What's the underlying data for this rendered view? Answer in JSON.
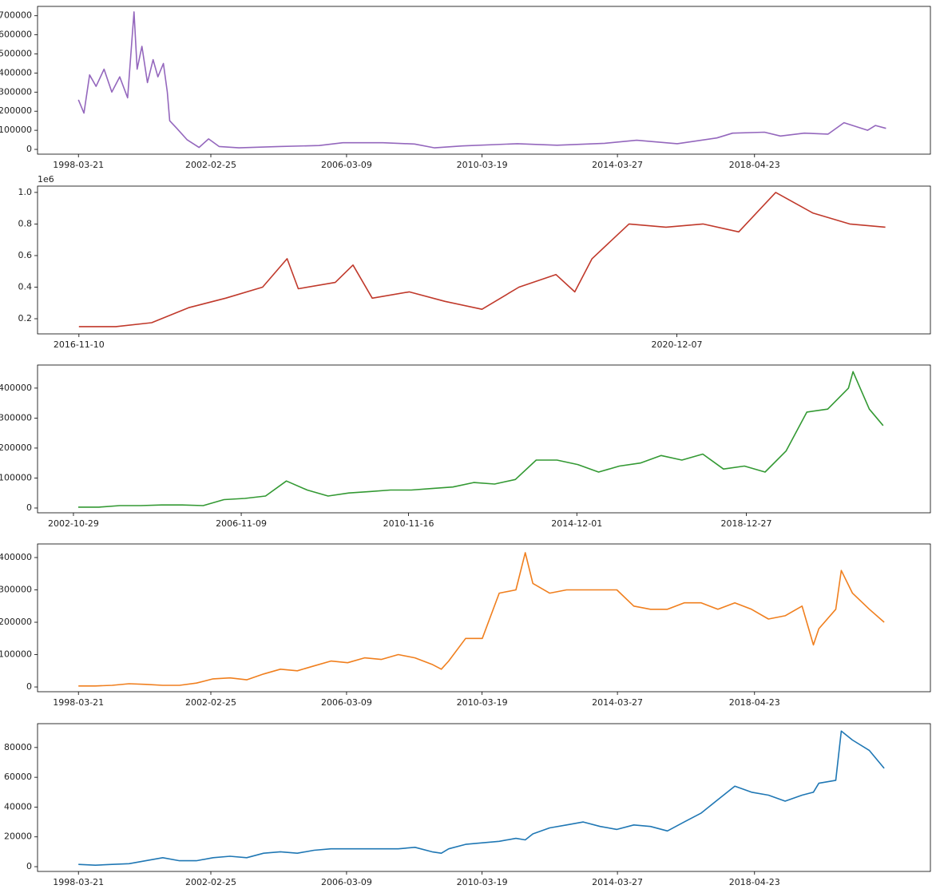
{
  "chart_data": [
    {
      "type": "line",
      "color": "#9467bd",
      "x": [
        "1998-03-21",
        "1998-05-20",
        "1998-07-20",
        "1998-09-28",
        "1998-12-24",
        "1999-03-18",
        "1999-06-12",
        "1999-09-06",
        "1999-11-14",
        "1999-12-18",
        "2000-02-08",
        "2000-04-08",
        "2000-06-08",
        "2000-07-30",
        "2000-09-28",
        "2000-11-10",
        "2000-12-06",
        "2001-02-21",
        "2001-06-13",
        "2001-10-20",
        "2002-02-01",
        "2002-05-25",
        "2002-12-28",
        "2004-03-10",
        "2005-05-15",
        "2006-01-28",
        "2007-04-08",
        "2008-03-15",
        "2008-10-20",
        "2009-08-16",
        "2011-04-06",
        "2012-06-10",
        "2013-11-08",
        "2014-10-22",
        "2016-01-05",
        "2017-03-10",
        "2017-08-28",
        "2018-08-10",
        "2019-01-29",
        "2019-10-15",
        "2020-06-30",
        "2020-12-19",
        "2021-09-02",
        "2021-11-26",
        "2022-03-20"
      ],
      "values": [
        260000,
        190000,
        390000,
        330000,
        420000,
        300000,
        380000,
        270000,
        720000,
        420000,
        540000,
        350000,
        470000,
        380000,
        450000,
        300000,
        150000,
        110000,
        50000,
        10000,
        55000,
        15000,
        8000,
        15000,
        20000,
        35000,
        35000,
        28000,
        8000,
        18000,
        30000,
        22000,
        32000,
        48000,
        30000,
        60000,
        85000,
        90000,
        70000,
        85000,
        80000,
        140000,
        100000,
        125000,
        110000
      ],
      "xlim": [
        "1997-01-01",
        "2023-07-15"
      ],
      "xticks": [
        "1998-03-21",
        "2002-02-25",
        "2006-03-09",
        "2010-03-19",
        "2014-03-27",
        "2018-04-23"
      ],
      "ylim": [
        -25000,
        749000
      ],
      "yticks": [
        0,
        100000,
        200000,
        300000,
        400000,
        500000,
        600000,
        700000
      ]
    },
    {
      "type": "line",
      "color": "#c0392b",
      "x": [
        "2016-11-10",
        "2017-02-10",
        "2017-05-10",
        "2017-08-10",
        "2017-11-10",
        "2018-02-10",
        "2018-04-12",
        "2018-05-10",
        "2018-08-10",
        "2018-09-23",
        "2018-11-10",
        "2019-02-10",
        "2019-05-10",
        "2019-08-10",
        "2019-11-10",
        "2020-02-10",
        "2020-03-28",
        "2020-05-10",
        "2020-08-10",
        "2020-11-10",
        "2021-02-10",
        "2021-05-10",
        "2021-08-10",
        "2021-11-10",
        "2022-02-10",
        "2022-05-10"
      ],
      "values": [
        150000,
        150000,
        175000,
        270000,
        330000,
        400000,
        580000,
        390000,
        430000,
        540000,
        330000,
        370000,
        310000,
        260000,
        400000,
        480000,
        370000,
        580000,
        800000,
        780000,
        800000,
        750000,
        1000000,
        870000,
        800000,
        780000
      ],
      "xlim": [
        "2016-07-30",
        "2022-08-30"
      ],
      "xticks": [
        "2016-11-10",
        "2020-12-07"
      ],
      "ylim": [
        104000,
        1040000
      ],
      "yticks": [
        {
          "value": 200000,
          "label": "0.2"
        },
        {
          "value": 400000,
          "label": "0.4"
        },
        {
          "value": 600000,
          "label": "0.6"
        },
        {
          "value": 800000,
          "label": "0.8"
        },
        {
          "value": 1000000,
          "label": "1.0"
        }
      ],
      "offset_text": "1e6"
    },
    {
      "type": "line",
      "color": "#339933",
      "x": [
        "2002-12-10",
        "2003-06-10",
        "2003-12-10",
        "2004-06-10",
        "2004-12-10",
        "2005-06-10",
        "2005-12-10",
        "2006-06-10",
        "2006-12-10",
        "2007-06-10",
        "2007-12-10",
        "2008-06-10",
        "2008-12-10",
        "2009-06-10",
        "2009-12-10",
        "2010-06-10",
        "2010-12-10",
        "2011-06-10",
        "2011-12-10",
        "2012-06-10",
        "2012-12-10",
        "2013-06-10",
        "2013-12-10",
        "2014-06-10",
        "2014-12-10",
        "2015-06-10",
        "2015-12-10",
        "2016-06-10",
        "2016-12-10",
        "2017-06-10",
        "2017-12-10",
        "2018-06-10",
        "2018-12-10",
        "2019-06-10",
        "2019-12-10",
        "2020-06-10",
        "2020-12-10",
        "2021-06-10",
        "2021-07-20",
        "2021-12-10",
        "2022-04-10"
      ],
      "values": [
        3000,
        3000,
        8000,
        8000,
        10000,
        10000,
        8000,
        28000,
        32000,
        40000,
        90000,
        60000,
        40000,
        50000,
        55000,
        60000,
        60000,
        65000,
        70000,
        85000,
        80000,
        95000,
        160000,
        160000,
        145000,
        120000,
        140000,
        150000,
        175000,
        160000,
        180000,
        130000,
        140000,
        120000,
        190000,
        320000,
        330000,
        400000,
        455000,
        330000,
        275000
      ],
      "xlim": [
        "2001-12-18",
        "2023-05-30"
      ],
      "xticks": [
        "2002-10-29",
        "2006-11-09",
        "2010-11-16",
        "2014-12-01",
        "2018-12-27"
      ],
      "ylim": [
        -16000,
        477000
      ],
      "yticks": [
        0,
        100000,
        200000,
        300000,
        400000
      ]
    },
    {
      "type": "line",
      "color": "#f07f1e",
      "x": [
        "1998-03-21",
        "1998-09-21",
        "1999-03-21",
        "1999-09-21",
        "2000-03-21",
        "2000-09-21",
        "2001-03-21",
        "2001-09-21",
        "2002-03-21",
        "2002-09-21",
        "2003-03-21",
        "2003-09-21",
        "2004-03-21",
        "2004-09-21",
        "2005-03-21",
        "2005-09-21",
        "2006-03-21",
        "2006-09-21",
        "2007-03-21",
        "2007-09-21",
        "2008-03-21",
        "2008-09-21",
        "2009-01-01",
        "2009-03-21",
        "2009-09-21",
        "2010-03-21",
        "2010-09-21",
        "2011-03-21",
        "2011-07-01",
        "2011-09-21",
        "2012-03-21",
        "2012-09-21",
        "2013-03-21",
        "2013-09-21",
        "2014-03-21",
        "2014-09-21",
        "2015-03-21",
        "2015-09-21",
        "2016-03-21",
        "2016-09-21",
        "2017-03-21",
        "2017-09-21",
        "2018-03-21",
        "2018-09-21",
        "2019-03-21",
        "2019-09-21",
        "2020-01-22",
        "2020-03-21",
        "2020-09-21",
        "2020-11-20",
        "2021-03-21",
        "2021-09-21",
        "2022-02-28"
      ],
      "values": [
        3000,
        3000,
        5000,
        10000,
        8000,
        5000,
        5000,
        12000,
        25000,
        28000,
        22000,
        40000,
        55000,
        50000,
        65000,
        80000,
        75000,
        90000,
        85000,
        100000,
        90000,
        70000,
        55000,
        80000,
        150000,
        150000,
        290000,
        300000,
        415000,
        320000,
        290000,
        300000,
        300000,
        300000,
        300000,
        250000,
        240000,
        240000,
        260000,
        260000,
        240000,
        260000,
        240000,
        210000,
        220000,
        250000,
        130000,
        180000,
        240000,
        360000,
        290000,
        240000,
        200000
      ],
      "xlim": [
        "1997-01-01",
        "2023-07-15"
      ],
      "xticks": [
        "1998-03-21",
        "2002-02-25",
        "2006-03-09",
        "2010-03-19",
        "2014-03-27",
        "2018-04-23"
      ],
      "ylim": [
        -14700,
        442000
      ],
      "yticks": [
        0,
        100000,
        200000,
        300000,
        400000
      ]
    },
    {
      "type": "line",
      "color": "#1f77b4",
      "x": [
        "1998-03-21",
        "1998-09-21",
        "1999-03-21",
        "1999-09-21",
        "2000-03-21",
        "2000-09-21",
        "2001-03-21",
        "2001-09-21",
        "2002-03-21",
        "2002-09-21",
        "2003-03-21",
        "2003-09-21",
        "2004-03-21",
        "2004-09-21",
        "2005-03-21",
        "2005-09-21",
        "2006-03-21",
        "2006-09-21",
        "2007-03-21",
        "2007-09-21",
        "2008-03-21",
        "2008-09-21",
        "2009-01-01",
        "2009-03-21",
        "2009-09-21",
        "2010-03-21",
        "2010-09-21",
        "2011-03-21",
        "2011-07-01",
        "2011-09-21",
        "2012-03-21",
        "2012-09-21",
        "2013-03-21",
        "2013-09-21",
        "2014-03-21",
        "2014-09-21",
        "2015-03-21",
        "2015-09-21",
        "2016-03-21",
        "2016-09-21",
        "2017-03-21",
        "2017-09-21",
        "2018-03-21",
        "2018-09-21",
        "2019-03-21",
        "2019-09-21",
        "2020-01-22",
        "2020-03-21",
        "2020-09-21",
        "2020-11-20",
        "2021-03-21",
        "2021-09-21",
        "2022-02-28"
      ],
      "values": [
        1500,
        1000,
        1500,
        2000,
        4000,
        6000,
        4000,
        4000,
        6000,
        7000,
        6000,
        9000,
        10000,
        9000,
        11000,
        12000,
        12000,
        12000,
        12000,
        12000,
        13000,
        10000,
        9000,
        12000,
        15000,
        16000,
        17000,
        19000,
        18000,
        22000,
        26000,
        28000,
        30000,
        27000,
        25000,
        28000,
        27000,
        24000,
        30000,
        36000,
        45000,
        54000,
        50000,
        48000,
        44000,
        48000,
        50000,
        56000,
        58000,
        91000,
        85000,
        78000,
        66000
      ],
      "xlim": [
        "1997-01-01",
        "2023-07-15"
      ],
      "xticks": [
        "1998-03-21",
        "2002-02-25",
        "2006-03-09",
        "2010-03-19",
        "2014-03-27",
        "2018-04-23"
      ],
      "ylim": [
        -3200,
        96000
      ],
      "yticks": [
        0,
        20000,
        40000,
        60000,
        80000
      ]
    }
  ]
}
